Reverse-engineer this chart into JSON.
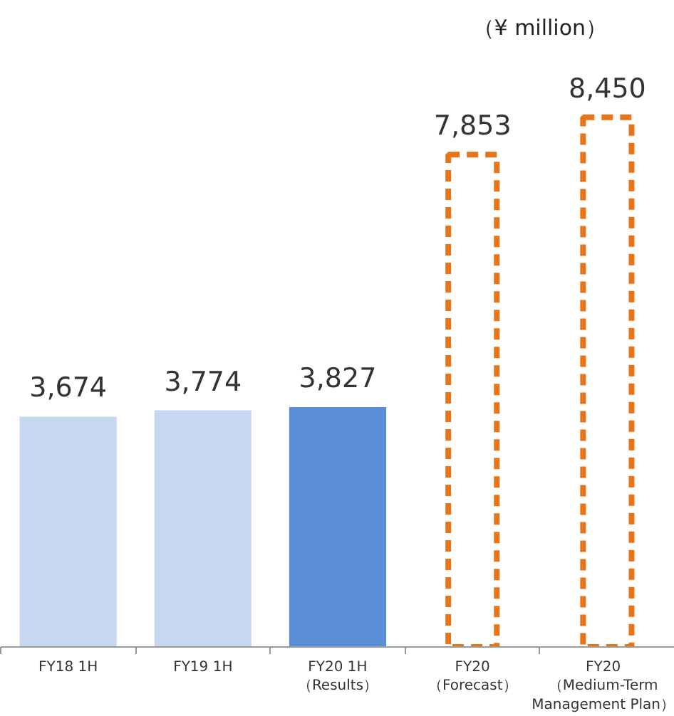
{
  "chart_data": {
    "type": "bar",
    "categories": [
      "FY18 1H",
      "FY19 1H",
      "FY20 1H\n（Results）",
      "FY20\n（Forecast）",
      "FY20\n（Medium-Term\nManagement Plan）"
    ],
    "series": [
      {
        "colors": [
          "#c5d8f0",
          "#c5d8f0",
          "#5b8fd6",
          null,
          null
        ],
        "values": [
          3674,
          3774,
          3827,
          null,
          null
        ],
        "value_labels": [
          "3,674",
          "3,774",
          "3,827",
          null,
          null
        ]
      },
      {
        "color": "#e8741a",
        "line_style": "dashed",
        "values": [
          null,
          null,
          null,
          7853,
          8450
        ],
        "value_labels": [
          null,
          null,
          null,
          "7,853",
          "8,450"
        ]
      }
    ],
    "grid": false,
    "annotations": [
      "（¥ million）"
    ]
  }
}
